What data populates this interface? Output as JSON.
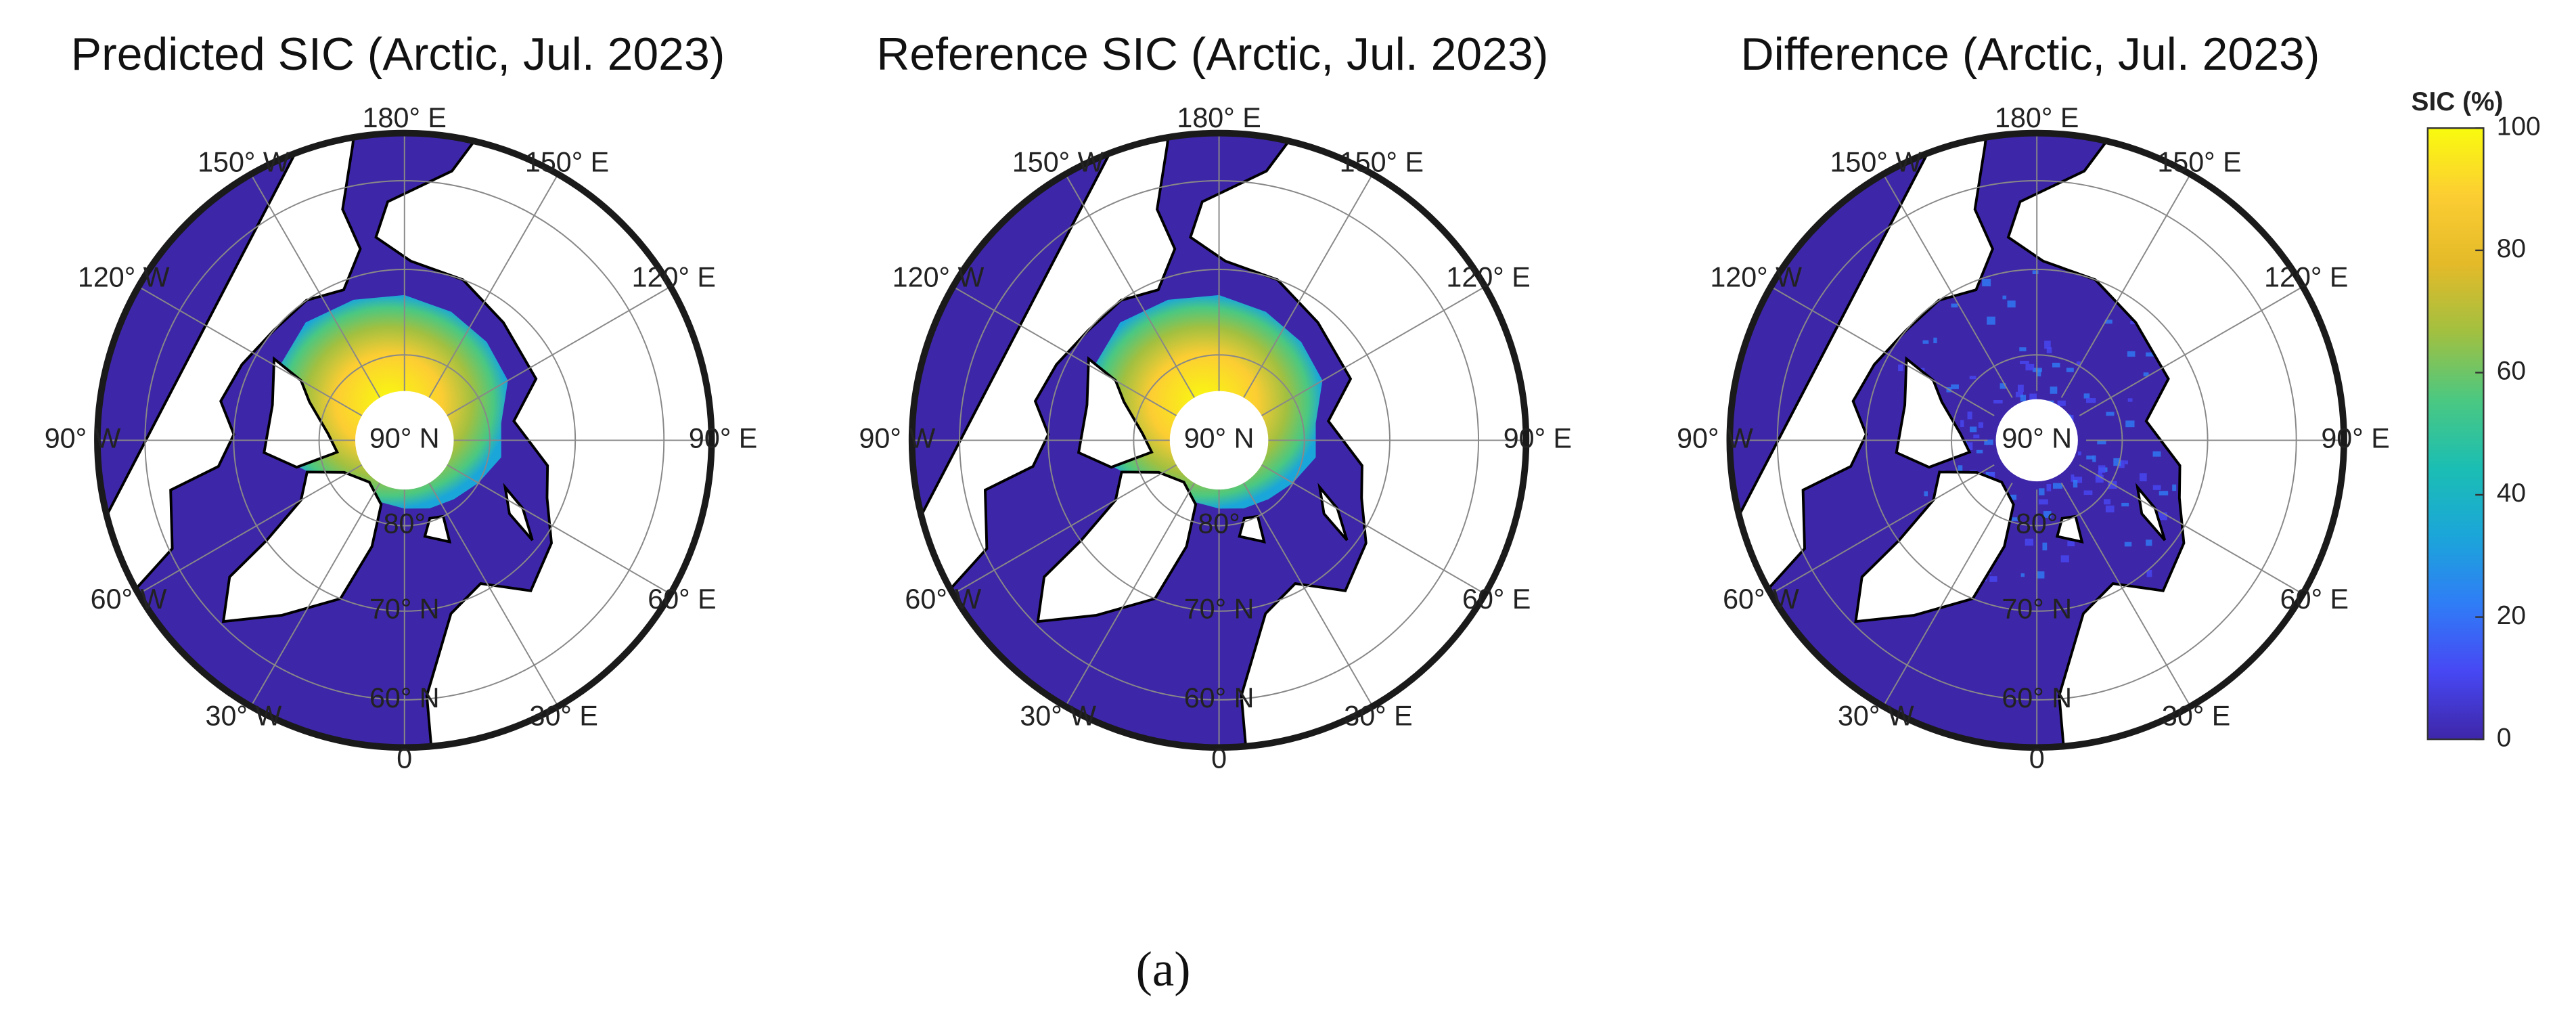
{
  "figure": {
    "caption": "(a)",
    "panels": [
      {
        "title": "Predicted SIC (Arctic, Jul. 2023)",
        "kind": "ice"
      },
      {
        "title": "Reference SIC (Arctic, Jul. 2023)",
        "kind": "ice"
      },
      {
        "title": "Difference (Arctic, Jul. 2023)",
        "kind": "difference"
      }
    ],
    "longitude_labels": [
      "180° E",
      "150° W",
      "150° E",
      "120° W",
      "120° E",
      "90° W",
      "90° E",
      "60° W",
      "60° E",
      "30° W",
      "30° E",
      "0"
    ],
    "latitude_labels": [
      "90° N",
      "80°",
      "70° N",
      "60° N"
    ],
    "colorbar": {
      "label": "SIC (%)",
      "lim": [
        0,
        100
      ],
      "ticks": [
        0,
        20,
        40,
        60,
        80,
        100
      ],
      "colormap": [
        "#3e26a8",
        "#4748f4",
        "#2f7df6",
        "#1ba6d9",
        "#1bbeb3",
        "#4bc881",
        "#a2c040",
        "#e4ba29",
        "#fccd33",
        "#f9fb0e"
      ]
    }
  }
}
